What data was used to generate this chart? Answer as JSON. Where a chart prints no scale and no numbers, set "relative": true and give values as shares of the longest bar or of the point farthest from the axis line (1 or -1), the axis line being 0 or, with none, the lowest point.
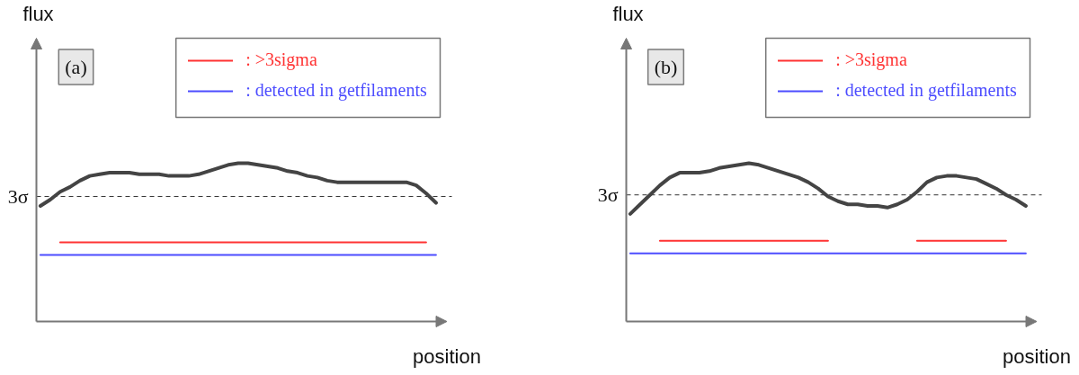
{
  "chart_data": [
    {
      "type": "line",
      "relative": true,
      "xlabel": "position",
      "ylabel": "flux",
      "annotations": [
        "(a)"
      ],
      "legend": "top right",
      "grid": false,
      "categories": [
        null,
        null,
        null,
        null,
        null,
        null,
        null,
        null,
        null,
        null,
        null,
        null,
        null,
        null,
        null,
        null,
        null,
        null,
        null,
        null,
        null,
        null,
        null,
        null,
        null,
        null,
        null,
        null,
        null,
        null,
        null,
        null,
        null,
        null,
        null,
        null,
        null,
        null,
        null,
        null,
        null
      ],
      "series": [
        {
          "color": "#444444",
          "values": [
            0.73,
            0.77,
            0.82,
            0.85,
            0.89,
            0.92,
            0.93,
            0.94,
            0.94,
            0.94,
            0.93,
            0.93,
            0.93,
            0.92,
            0.92,
            0.92,
            0.93,
            0.95,
            0.97,
            0.99,
            1.0,
            1.0,
            0.99,
            0.98,
            0.97,
            0.95,
            0.94,
            0.92,
            0.91,
            0.89,
            0.88,
            0.88,
            0.88,
            0.88,
            0.88,
            0.88,
            0.88,
            0.88,
            0.86,
            0.81,
            0.75
          ]
        },
        {
          "name": ": >3sigma",
          "color": "#ff3333",
          "values": [
            null,
            null,
            0.5,
            0.5,
            0.5,
            0.5,
            0.5,
            0.5,
            0.5,
            0.5,
            0.5,
            0.5,
            0.5,
            0.5,
            0.5,
            0.5,
            0.5,
            0.5,
            0.5,
            0.5,
            0.5,
            0.5,
            0.5,
            0.5,
            0.5,
            0.5,
            0.5,
            0.5,
            0.5,
            0.5,
            0.5,
            0.5,
            0.5,
            0.5,
            0.5,
            0.5,
            0.5,
            0.5,
            0.5,
            0.5,
            null
          ]
        },
        {
          "name": ": detected in getfilaments",
          "color": "#4d4dff",
          "values": [
            0.42,
            0.42,
            0.42,
            0.42,
            0.42,
            0.42,
            0.42,
            0.42,
            0.42,
            0.42,
            0.42,
            0.42,
            0.42,
            0.42,
            0.42,
            0.42,
            0.42,
            0.42,
            0.42,
            0.42,
            0.42,
            0.42,
            0.42,
            0.42,
            0.42,
            0.42,
            0.42,
            0.42,
            0.42,
            0.42,
            0.42,
            0.42,
            0.42,
            0.42,
            0.42,
            0.42,
            0.42,
            0.42,
            0.42,
            0.42,
            0.42
          ]
        }
      ],
      "ref_lines": [
        {
          "axis": "y",
          "value": 0.79,
          "label": "3σ",
          "color": "#333333",
          "line_style": "dashed"
        }
      ]
    },
    {
      "type": "line",
      "relative": true,
      "xlabel": "position",
      "ylabel": "flux",
      "annotations": [
        "(b)"
      ],
      "legend": "top right",
      "grid": false,
      "categories": [
        null,
        null,
        null,
        null,
        null,
        null,
        null,
        null,
        null,
        null,
        null,
        null,
        null,
        null,
        null,
        null,
        null,
        null,
        null,
        null,
        null,
        null,
        null,
        null,
        null,
        null,
        null,
        null,
        null,
        null,
        null,
        null,
        null,
        null,
        null,
        null,
        null,
        null,
        null,
        null,
        null
      ],
      "series": [
        {
          "color": "#444444",
          "values": [
            0.68,
            0.74,
            0.8,
            0.86,
            0.91,
            0.94,
            0.94,
            0.94,
            0.95,
            0.97,
            0.98,
            0.99,
            1.0,
            0.99,
            0.97,
            0.95,
            0.93,
            0.91,
            0.88,
            0.84,
            0.79,
            0.76,
            0.74,
            0.74,
            0.73,
            0.73,
            0.72,
            0.74,
            0.77,
            0.82,
            0.88,
            0.91,
            0.92,
            0.92,
            0.91,
            0.9,
            0.87,
            0.84,
            0.8,
            0.77,
            0.73
          ]
        },
        {
          "name": ": >3sigma",
          "color": "#ff3333",
          "values": [
            null,
            null,
            null,
            0.51,
            0.51,
            0.51,
            0.51,
            0.51,
            0.51,
            0.51,
            0.51,
            0.51,
            0.51,
            0.51,
            0.51,
            0.51,
            0.51,
            0.51,
            0.51,
            0.51,
            0.51,
            null,
            null,
            null,
            null,
            null,
            null,
            null,
            null,
            0.51,
            0.51,
            0.51,
            0.51,
            0.51,
            0.51,
            0.51,
            0.51,
            0.51,
            0.51,
            null,
            null
          ]
        },
        {
          "name": ": detected in getfilaments",
          "color": "#4d4dff",
          "values": [
            0.43,
            0.43,
            0.43,
            0.43,
            0.43,
            0.43,
            0.43,
            0.43,
            0.43,
            0.43,
            0.43,
            0.43,
            0.43,
            0.43,
            0.43,
            0.43,
            0.43,
            0.43,
            0.43,
            0.43,
            0.43,
            0.43,
            0.43,
            0.43,
            0.43,
            0.43,
            0.43,
            0.43,
            0.43,
            0.43,
            0.43,
            0.43,
            0.43,
            0.43,
            0.43,
            0.43,
            0.43,
            0.43,
            0.43,
            0.43,
            0.43
          ]
        }
      ],
      "ref_lines": [
        {
          "axis": "y",
          "value": 0.8,
          "label": "3σ",
          "color": "#333333",
          "line_style": "dashed"
        }
      ]
    }
  ]
}
